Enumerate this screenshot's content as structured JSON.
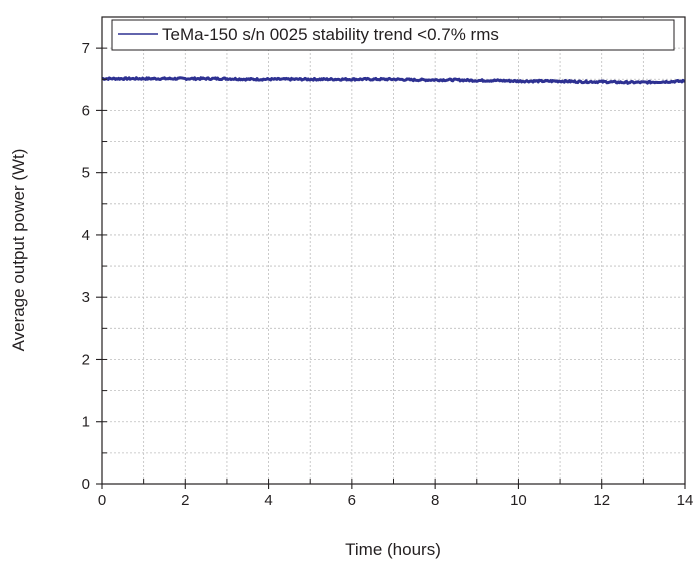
{
  "chart_data": {
    "type": "line",
    "xlabel": "Time (hours)",
    "ylabel": "Average output power (Wt)",
    "xlim": [
      0,
      14
    ],
    "ylim": [
      0,
      7.5
    ],
    "x_ticks": [
      0,
      2,
      4,
      6,
      8,
      10,
      12,
      14
    ],
    "y_ticks": [
      0,
      1,
      2,
      3,
      4,
      5,
      6,
      7
    ],
    "grid": true,
    "legend_position": "top",
    "series": [
      {
        "name": "TeMa-150 s/n 0025 stability trend <0.7% rms",
        "color": "#2e3192",
        "x": [
          0,
          0.5,
          1,
          1.5,
          2,
          2.5,
          3,
          3.5,
          4,
          4.5,
          5,
          5.5,
          6,
          6.5,
          7,
          7.5,
          8,
          8.5,
          9,
          9.5,
          10,
          10.5,
          11,
          11.5,
          12,
          12.5,
          13,
          13.5,
          14
        ],
        "y": [
          6.51,
          6.51,
          6.51,
          6.51,
          6.51,
          6.51,
          6.51,
          6.5,
          6.5,
          6.5,
          6.5,
          6.5,
          6.5,
          6.5,
          6.5,
          6.49,
          6.49,
          6.49,
          6.48,
          6.48,
          6.47,
          6.47,
          6.47,
          6.46,
          6.46,
          6.45,
          6.45,
          6.46,
          6.47
        ]
      }
    ]
  }
}
